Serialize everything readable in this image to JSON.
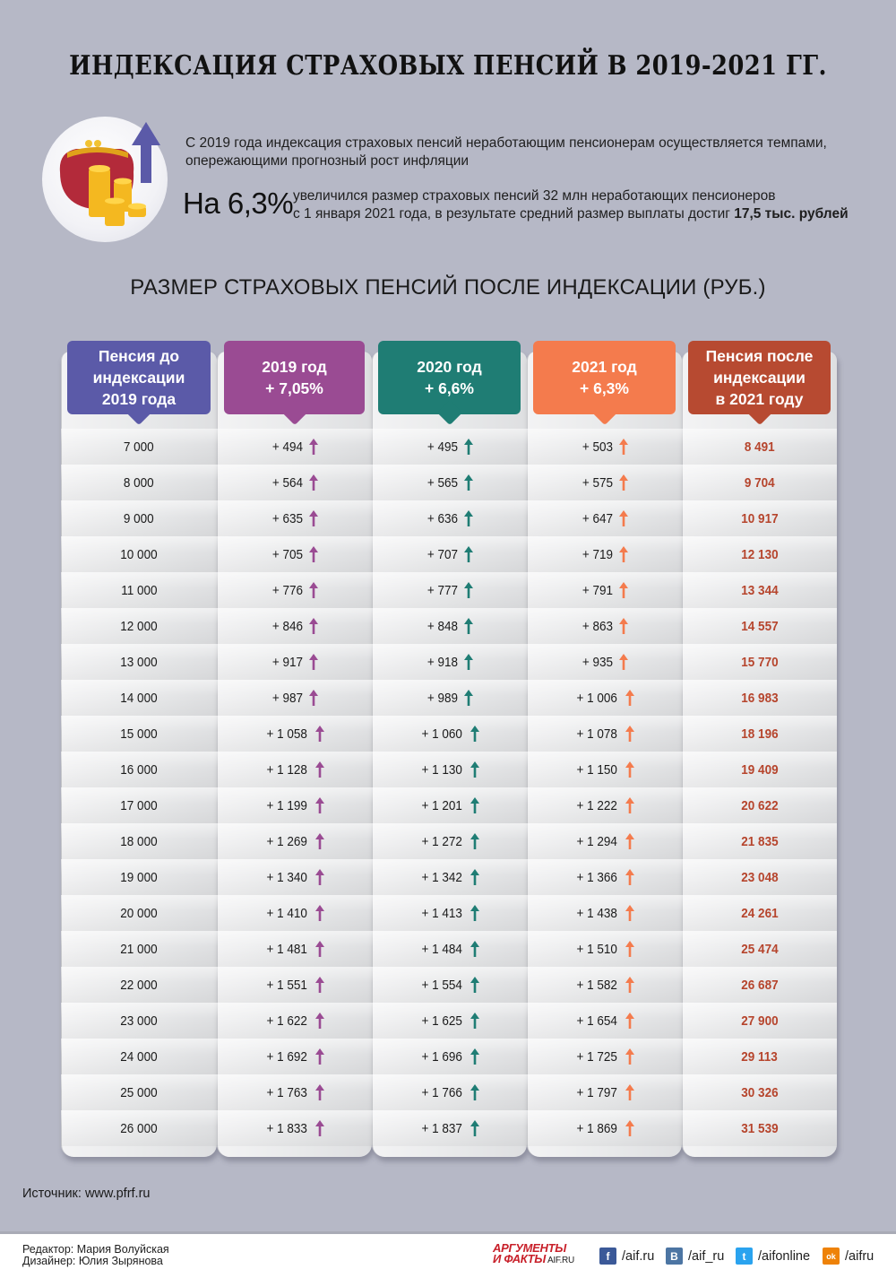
{
  "header": {
    "title": "ИНДЕКСАЦИЯ СТРАХОВЫХ ПЕНСИЙ В 2019-2021 ГГ.",
    "intro_line1": "С 2019 года индексация страховых пенсий неработающим пенсионерам осуществляется темпами,",
    "intro_line2": "опережающими прогнозный рост инфляции",
    "big_percent": "На 6,3%",
    "pct_line1": "увеличился размер страховых пенсий 32 млн неработающих пенсионеров",
    "pct_line2": "с 1 января 2021 года, в результате средний размер выплаты достиг ",
    "pct_bold": "17,5 тыс. рублей",
    "icon": "purse-coins-arrow-up-icon"
  },
  "subtitle": "РАЗМЕР СТРАХОВЫХ ПЕНСИЙ ПОСЛЕ ИНДЕКСАЦИИ (РУБ.)",
  "columns": [
    {
      "line1": "Пенсия до",
      "line2": "индексации",
      "line3": "2019 года",
      "color": "#5b5aa8"
    },
    {
      "line1": "2019 год",
      "line2": "+ 7,05%",
      "line3": "",
      "color": "#9a4b93"
    },
    {
      "line1": "2020 год",
      "line2": "+ 6,6%",
      "line3": "",
      "color": "#1f7d74"
    },
    {
      "line1": "2021 год",
      "line2": "+ 6,3%",
      "line3": "",
      "color": "#f47b4d"
    },
    {
      "line1": "Пенсия после",
      "line2": "индексации",
      "line3": "в 2021 году",
      "color": "#b74a31"
    }
  ],
  "arrow_colors": {
    "y2019": "#9a4b93",
    "y2020": "#1f7d74",
    "y2021": "#f47b4d"
  },
  "rows": [
    {
      "base": "7 000",
      "y2019": "+ 494",
      "y2020": "+ 495",
      "y2021": "+ 503",
      "final": "8 491"
    },
    {
      "base": "8 000",
      "y2019": "+ 564",
      "y2020": "+ 565",
      "y2021": "+ 575",
      "final": "9 704"
    },
    {
      "base": "9 000",
      "y2019": "+ 635",
      "y2020": "+ 636",
      "y2021": "+ 647",
      "final": "10 917"
    },
    {
      "base": "10 000",
      "y2019": "+ 705",
      "y2020": "+ 707",
      "y2021": "+ 719",
      "final": "12 130"
    },
    {
      "base": "11 000",
      "y2019": "+ 776",
      "y2020": "+ 777",
      "y2021": "+ 791",
      "final": "13 344"
    },
    {
      "base": "12 000",
      "y2019": "+ 846",
      "y2020": "+ 848",
      "y2021": "+ 863",
      "final": "14 557"
    },
    {
      "base": "13 000",
      "y2019": "+ 917",
      "y2020": "+ 918",
      "y2021": "+ 935",
      "final": "15 770"
    },
    {
      "base": "14 000",
      "y2019": "+ 987",
      "y2020": "+ 989",
      "y2021": "+ 1 006",
      "final": "16 983"
    },
    {
      "base": "15 000",
      "y2019": "+ 1 058",
      "y2020": "+ 1 060",
      "y2021": "+ 1 078",
      "final": "18 196"
    },
    {
      "base": "16 000",
      "y2019": "+ 1 128",
      "y2020": "+ 1 130",
      "y2021": "+ 1 150",
      "final": "19 409"
    },
    {
      "base": "17 000",
      "y2019": "+ 1 199",
      "y2020": "+ 1 201",
      "y2021": "+ 1 222",
      "final": "20 622"
    },
    {
      "base": "18 000",
      "y2019": "+ 1 269",
      "y2020": "+ 1 272",
      "y2021": "+ 1 294",
      "final": "21 835"
    },
    {
      "base": "19 000",
      "y2019": "+ 1 340",
      "y2020": "+ 1 342",
      "y2021": "+ 1 366",
      "final": "23 048"
    },
    {
      "base": "20 000",
      "y2019": "+ 1 410",
      "y2020": "+ 1 413",
      "y2021": "+ 1 438",
      "final": "24 261"
    },
    {
      "base": "21 000",
      "y2019": "+ 1 481",
      "y2020": "+ 1 484",
      "y2021": "+ 1 510",
      "final": "25 474"
    },
    {
      "base": "22 000",
      "y2019": "+ 1 551",
      "y2020": "+ 1 554",
      "y2021": "+ 1 582",
      "final": "26 687"
    },
    {
      "base": "23 000",
      "y2019": "+ 1 622",
      "y2020": "+ 1 625",
      "y2021": "+ 1 654",
      "final": "27 900"
    },
    {
      "base": "24 000",
      "y2019": "+ 1 692",
      "y2020": "+ 1 696",
      "y2021": "+ 1 725",
      "final": "29 113"
    },
    {
      "base": "25 000",
      "y2019": "+ 1 763",
      "y2020": "+ 1 766",
      "y2021": "+ 1 797",
      "final": "30 326"
    },
    {
      "base": "26 000",
      "y2019": "+ 1 833",
      "y2020": "+ 1 837",
      "y2021": "+ 1 869",
      "final": "31 539"
    }
  ],
  "source": "Источник: www.pfrf.ru",
  "footer": {
    "editor": "Редактор: Мария Волуйская",
    "designer": "Дизайнер: Юлия Зырянова",
    "logo_line1": "АРГУМЕНТЫ",
    "logo_line2": "И ФАКТЫ",
    "logo_site": "AIF.RU",
    "social": [
      {
        "icon": "facebook-icon",
        "glyph": "f",
        "label": "/aif.ru",
        "color": "#3b5998"
      },
      {
        "icon": "vkontakte-icon",
        "glyph": "B",
        "label": "/aif_ru",
        "color": "#4c75a3"
      },
      {
        "icon": "twitter-icon",
        "glyph": "t",
        "label": "/aifonline",
        "color": "#2aa3ef"
      },
      {
        "icon": "odnoklassniki-icon",
        "glyph": "ok",
        "label": "/aifru",
        "color": "#ee8208"
      }
    ]
  },
  "chart_data": {
    "type": "table",
    "title": "РАЗМЕР СТРАХОВЫХ ПЕНСИЙ ПОСЛЕ ИНДЕКСАЦИИ (РУБ.)",
    "columns": [
      "Пенсия до индексации 2019 года",
      "2019 год + 7,05%",
      "2020 год + 6,6%",
      "2021 год + 6,3%",
      "Пенсия после индексации в 2021 году"
    ],
    "x": [
      7000,
      8000,
      9000,
      10000,
      11000,
      12000,
      13000,
      14000,
      15000,
      16000,
      17000,
      18000,
      19000,
      20000,
      21000,
      22000,
      23000,
      24000,
      25000,
      26000
    ],
    "series": [
      {
        "name": "2019 год + 7,05%",
        "values": [
          494,
          564,
          635,
          705,
          776,
          846,
          917,
          987,
          1058,
          1128,
          1199,
          1269,
          1340,
          1410,
          1481,
          1551,
          1622,
          1692,
          1763,
          1833
        ]
      },
      {
        "name": "2020 год + 6,6%",
        "values": [
          495,
          565,
          636,
          707,
          777,
          848,
          918,
          989,
          1060,
          1130,
          1201,
          1272,
          1342,
          1413,
          1484,
          1554,
          1625,
          1696,
          1766,
          1837
        ]
      },
      {
        "name": "2021 год + 6,3%",
        "values": [
          503,
          575,
          647,
          719,
          791,
          863,
          935,
          1006,
          1078,
          1150,
          1222,
          1294,
          1366,
          1438,
          1510,
          1582,
          1654,
          1725,
          1797,
          1869
        ]
      },
      {
        "name": "Пенсия после индексации в 2021 году",
        "values": [
          8491,
          9704,
          10917,
          12130,
          13344,
          14557,
          15770,
          16983,
          18196,
          19409,
          20622,
          21835,
          23048,
          24261,
          25474,
          26687,
          27900,
          29113,
          30326,
          31539
        ]
      }
    ],
    "xlabel": "Пенсия до индексации 2019 года",
    "ylabel": "руб."
  }
}
